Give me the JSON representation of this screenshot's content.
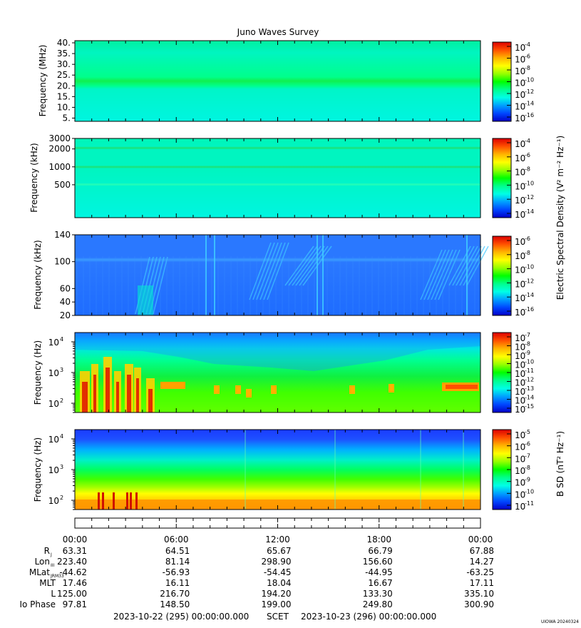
{
  "title": "Juno Waves Survey",
  "colors": {
    "colormap": [
      "#0000c8",
      "#0046ff",
      "#00a0ff",
      "#00ffe6",
      "#00ff8c",
      "#00ff00",
      "#96ff00",
      "#ffff00",
      "#ffb400",
      "#ff5000",
      "#dc0000"
    ]
  },
  "chart_data": [
    {
      "type": "heatmap",
      "ylabel": "Frequency (MHz)",
      "yticks": [
        "5.",
        "10.",
        "15.",
        "20.",
        "25.",
        "30.",
        "35.",
        "40."
      ],
      "yscale": "linear",
      "ylim": [
        3.5,
        41
      ],
      "cbar_ticks": [
        "-4",
        "-6",
        "-8",
        "-10",
        "-12",
        "-14",
        "-16"
      ],
      "cbar_label": "",
      "description_levels": {
        "background": -12.5,
        "band_20MHz": -11.2
      }
    },
    {
      "type": "heatmap",
      "ylabel": "Frequency (kHz)",
      "yticks": [
        "3000",
        "2000",
        "1000",
        "500"
      ],
      "yscale": "log",
      "ylim": [
        140,
        3000
      ],
      "cbar_ticks": [
        "-4",
        "-6",
        "-8",
        "-10",
        "-12",
        "-14"
      ],
      "cbar_label": "",
      "description_levels": {
        "background": -12.5,
        "band_2000kHz": -11.3,
        "band_1000kHz": -11.3
      }
    },
    {
      "type": "heatmap",
      "ylabel": "Frequency (kHz)",
      "yticks": [
        "140",
        "100",
        "60",
        "40",
        "20"
      ],
      "yscale": "linear",
      "ylim": [
        20,
        140
      ],
      "cbar_ticks": [
        "-6",
        "-8",
        "-10",
        "-12",
        "-14",
        "-16"
      ],
      "cbar_label": "",
      "description_levels": {
        "background": -14.5
      }
    },
    {
      "type": "heatmap",
      "ylabel": "Frequency (Hz)",
      "yticks": [
        "4",
        "3",
        "2"
      ],
      "yscale": "log",
      "ylim": [
        50,
        20000
      ],
      "cbar_ticks": [
        "-7",
        "-8",
        "-9",
        "-10",
        "-11",
        "-12",
        "-13",
        "-14",
        "-15"
      ],
      "cbar_label": "",
      "description_levels": {
        "high_freq": -13.5,
        "low_freq": -10,
        "bursts": -7.5
      }
    },
    {
      "type": "heatmap",
      "ylabel": "Frequency (Hz)",
      "yticks": [
        "4",
        "3",
        "2"
      ],
      "yscale": "log",
      "ylim": [
        50,
        20000
      ],
      "cbar_ticks": [
        "-5",
        "-6",
        "-7",
        "-8",
        "-9",
        "-10",
        "-11"
      ],
      "cbar_label": "B SD (nT² Hz⁻¹)",
      "description_levels": {
        "high_freq": -10.5,
        "mid_freq": -7.5,
        "low_freq": -5.5
      }
    }
  ],
  "shared_cbar_label": "Electric Spectral Density (V² m⁻² Hz⁻¹)",
  "ephemeris": {
    "times": [
      "00:00",
      "06:00",
      "12:00",
      "18:00",
      "00:00"
    ],
    "rows": [
      {
        "label": "R",
        "sub": "J",
        "values": [
          "63.31",
          "64.51",
          "65.67",
          "66.79",
          "67.88"
        ]
      },
      {
        "label": "Lon",
        "sub": "III",
        "values": [
          "223.40",
          "81.14",
          "298.90",
          "156.60",
          "14.27"
        ]
      },
      {
        "label": "MLat",
        "sub": "JRM33",
        "values": [
          "-44.62",
          "-56.93",
          "-54.45",
          "-44.95",
          "-63.25"
        ]
      },
      {
        "label": "MLT",
        "sub": "",
        "values": [
          "17.46",
          "16.11",
          "18.04",
          "16.67",
          "17.11"
        ]
      },
      {
        "label": "L",
        "sub": "",
        "values": [
          "125.00",
          "216.70",
          "194.20",
          "133.30",
          "335.10"
        ]
      },
      {
        "label": "Io Phase",
        "sub": "",
        "values": [
          "97.81",
          "148.50",
          "199.00",
          "249.80",
          "300.90"
        ]
      }
    ]
  },
  "footer": {
    "start": "2023-10-22 (295) 00:00:00.000",
    "scet": "SCET",
    "end": "2023-10-23 (296) 00:00:00.000"
  },
  "watermark": "UIOWA 20240324"
}
